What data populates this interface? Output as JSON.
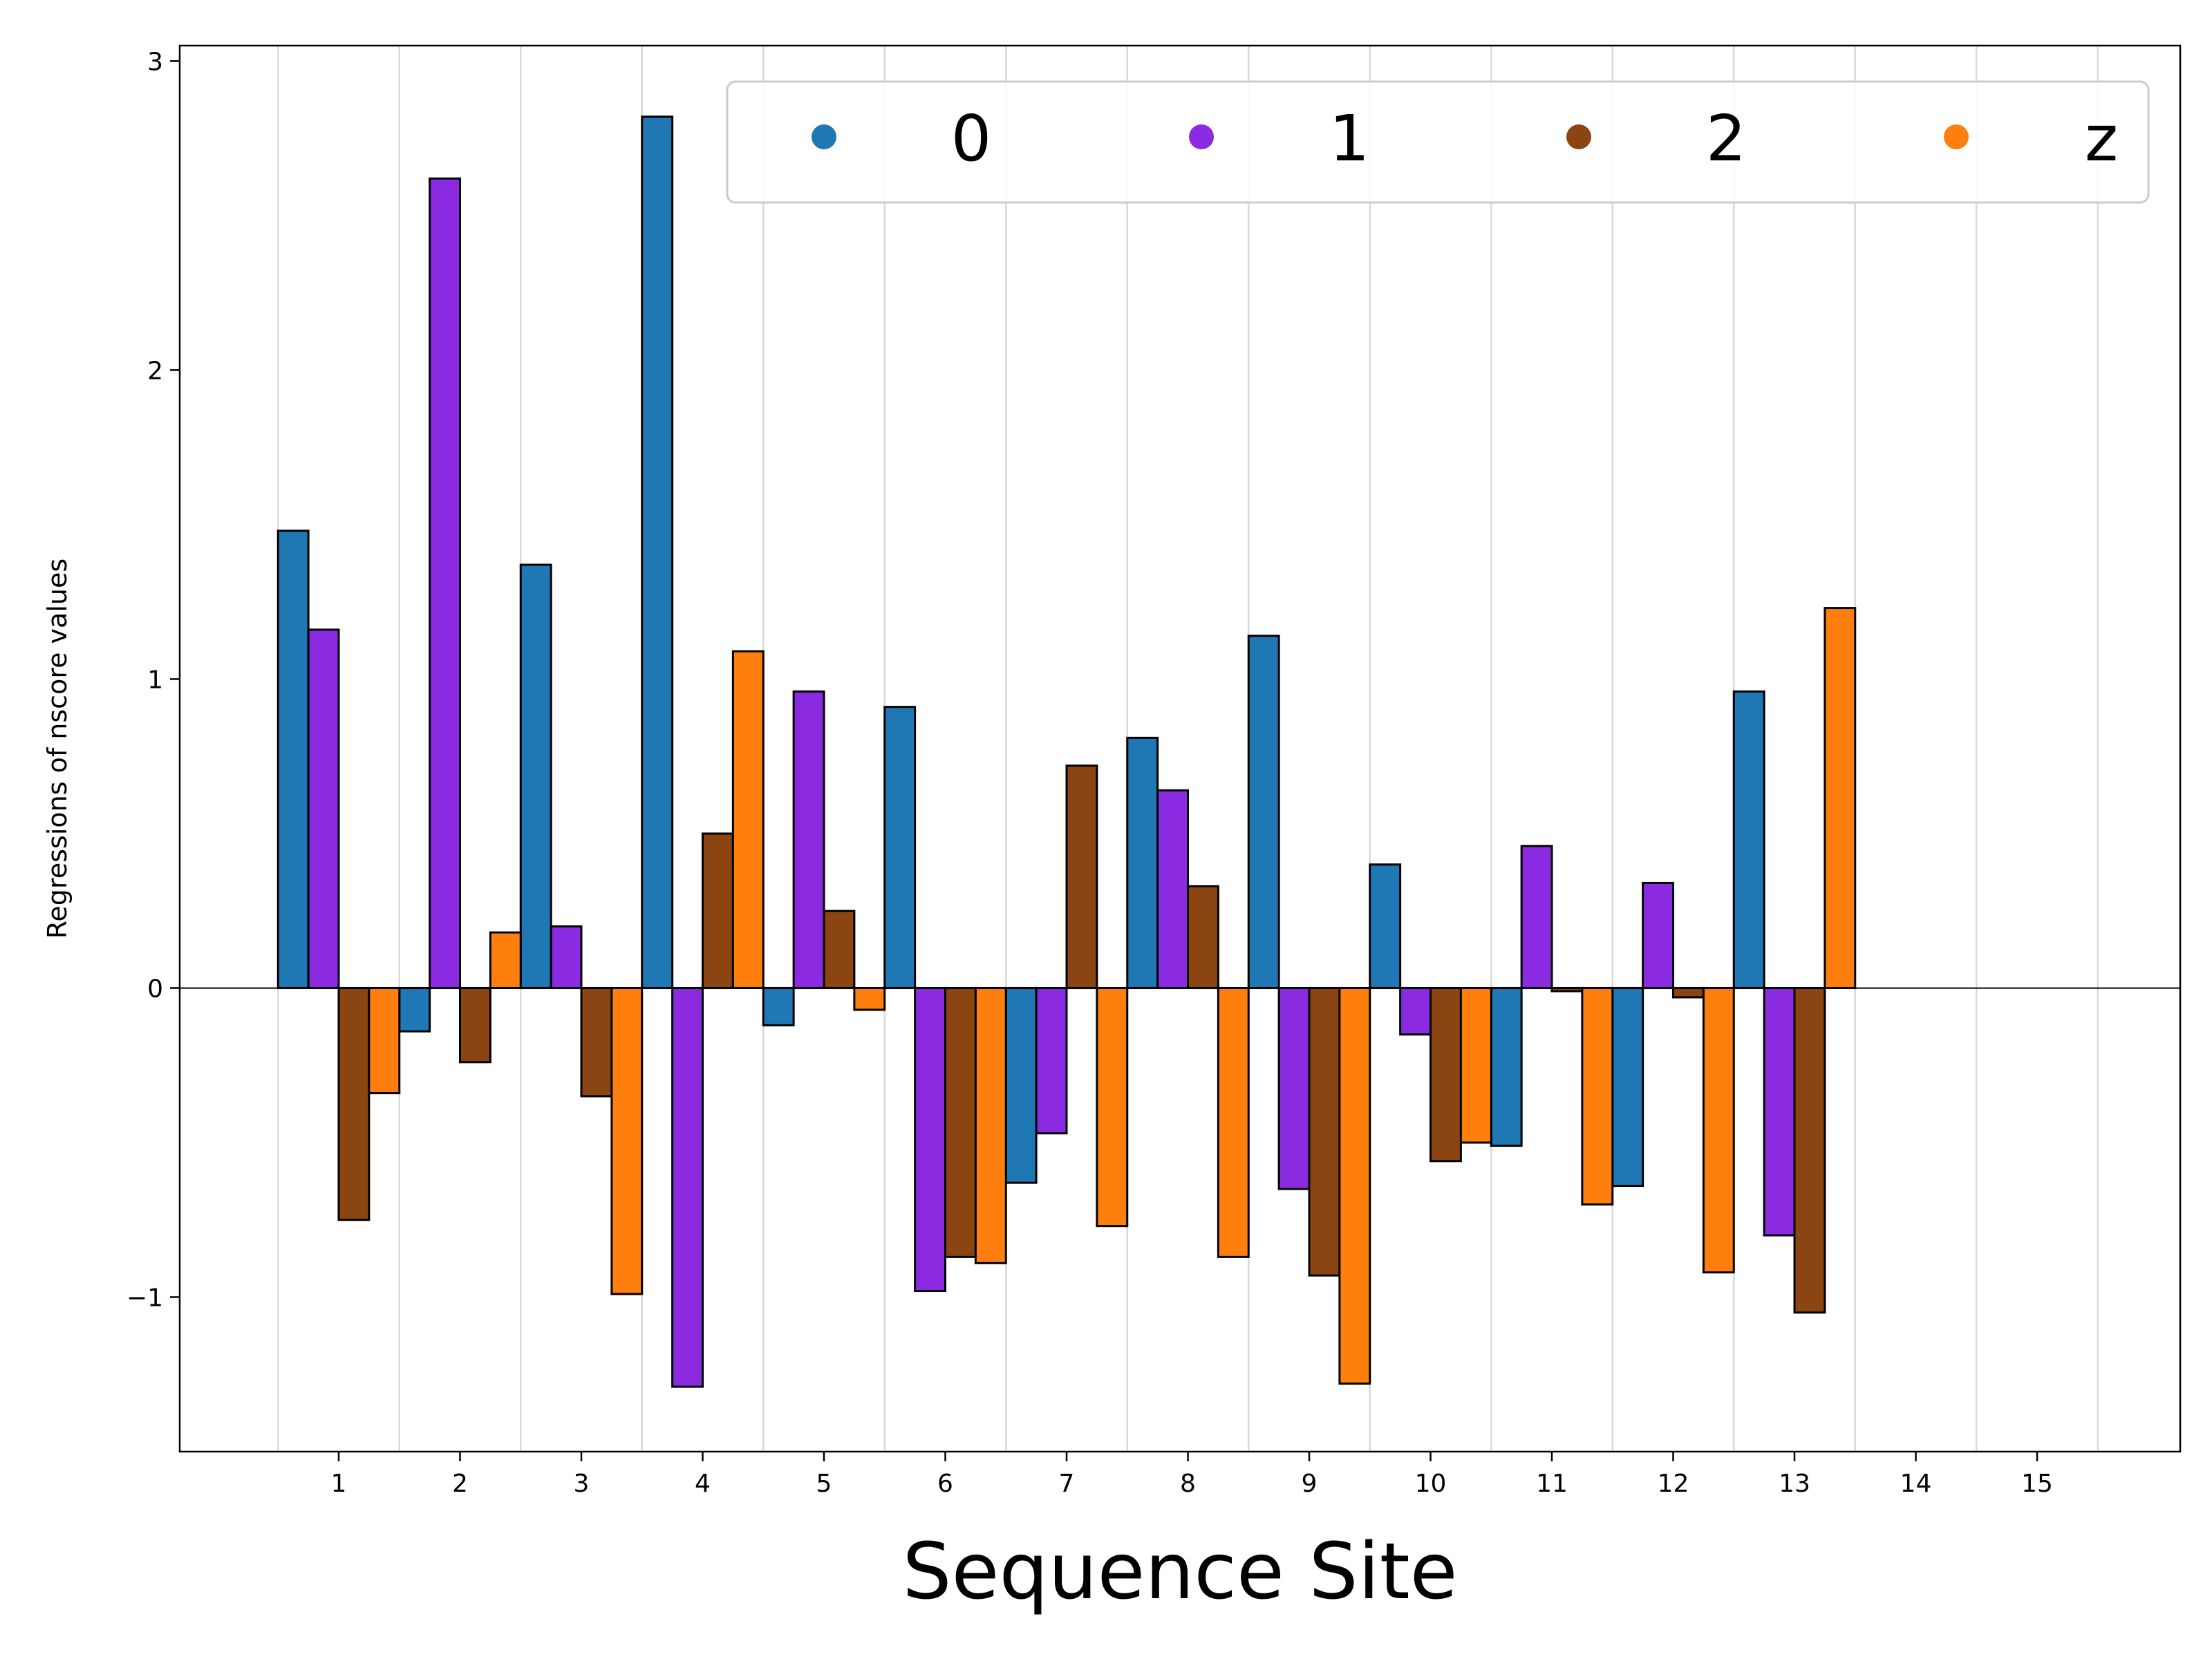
{
  "chart_data": {
    "type": "bar",
    "xlabel": "Sequence Site",
    "ylabel": "Regressions of nscore values",
    "ylim": [
      -1.5,
      3.05
    ],
    "yticks": [
      -1,
      0,
      1,
      2,
      3
    ],
    "ytick_labels": [
      "−1",
      "0",
      "1",
      "2",
      "3"
    ],
    "categories": [
      "1",
      "2",
      "3",
      "4",
      "5",
      "6",
      "7",
      "8",
      "9",
      "10",
      "11",
      "12",
      "13",
      "14",
      "15"
    ],
    "legend_position": "top-right",
    "grid": "vertical",
    "series": [
      {
        "name": "0",
        "color": "#1f77b4",
        "values": [
          1.48,
          -0.14,
          1.37,
          2.82,
          -0.12,
          0.91,
          -0.63,
          0.81,
          1.14,
          0.4,
          -0.51,
          -0.64,
          0.96,
          null,
          null
        ]
      },
      {
        "name": "1",
        "color": "#8a2be2",
        "values": [
          1.16,
          2.62,
          0.2,
          -1.29,
          0.96,
          -0.98,
          -0.47,
          0.64,
          -0.65,
          -0.15,
          0.46,
          0.34,
          -0.8,
          null,
          null
        ]
      },
      {
        "name": "2",
        "color": "#8b4513",
        "values": [
          -0.75,
          -0.24,
          -0.35,
          0.5,
          0.25,
          -0.87,
          0.72,
          0.33,
          -0.93,
          -0.56,
          -0.01,
          -0.03,
          -1.05,
          null,
          null
        ]
      },
      {
        "name": "z",
        "color": "#ff7f0e",
        "values": [
          -0.34,
          0.18,
          -0.99,
          1.09,
          -0.07,
          -0.89,
          -0.77,
          -0.87,
          -1.28,
          -0.5,
          -0.7,
          -0.92,
          1.23,
          null,
          null
        ]
      }
    ]
  }
}
